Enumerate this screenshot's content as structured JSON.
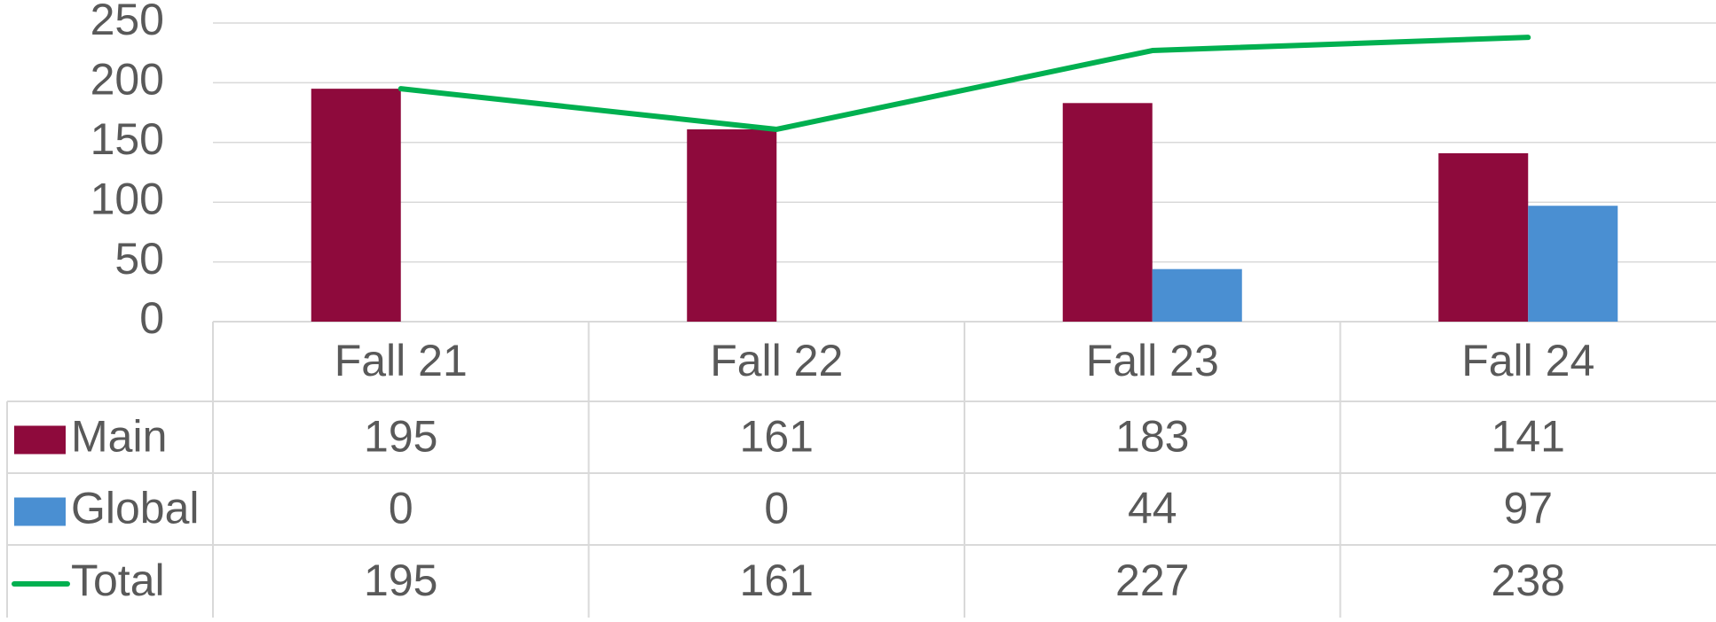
{
  "chart_data": {
    "type": "bar",
    "categories": [
      "Fall 21",
      "Fall 22",
      "Fall 23",
      "Fall 24"
    ],
    "series": [
      {
        "name": "Main",
        "color": "#8e0a3c",
        "values": [
          195,
          161,
          183,
          141
        ]
      },
      {
        "name": "Global",
        "color": "#4a8fd2",
        "values": [
          0,
          0,
          44,
          97
        ]
      },
      {
        "name": "Total",
        "type": "line",
        "color": "#00b050",
        "values": [
          195,
          161,
          227,
          238
        ]
      }
    ],
    "ylim": [
      0,
      250
    ],
    "yticks": [
      0,
      50,
      100,
      150,
      200,
      250
    ],
    "grid": true
  }
}
